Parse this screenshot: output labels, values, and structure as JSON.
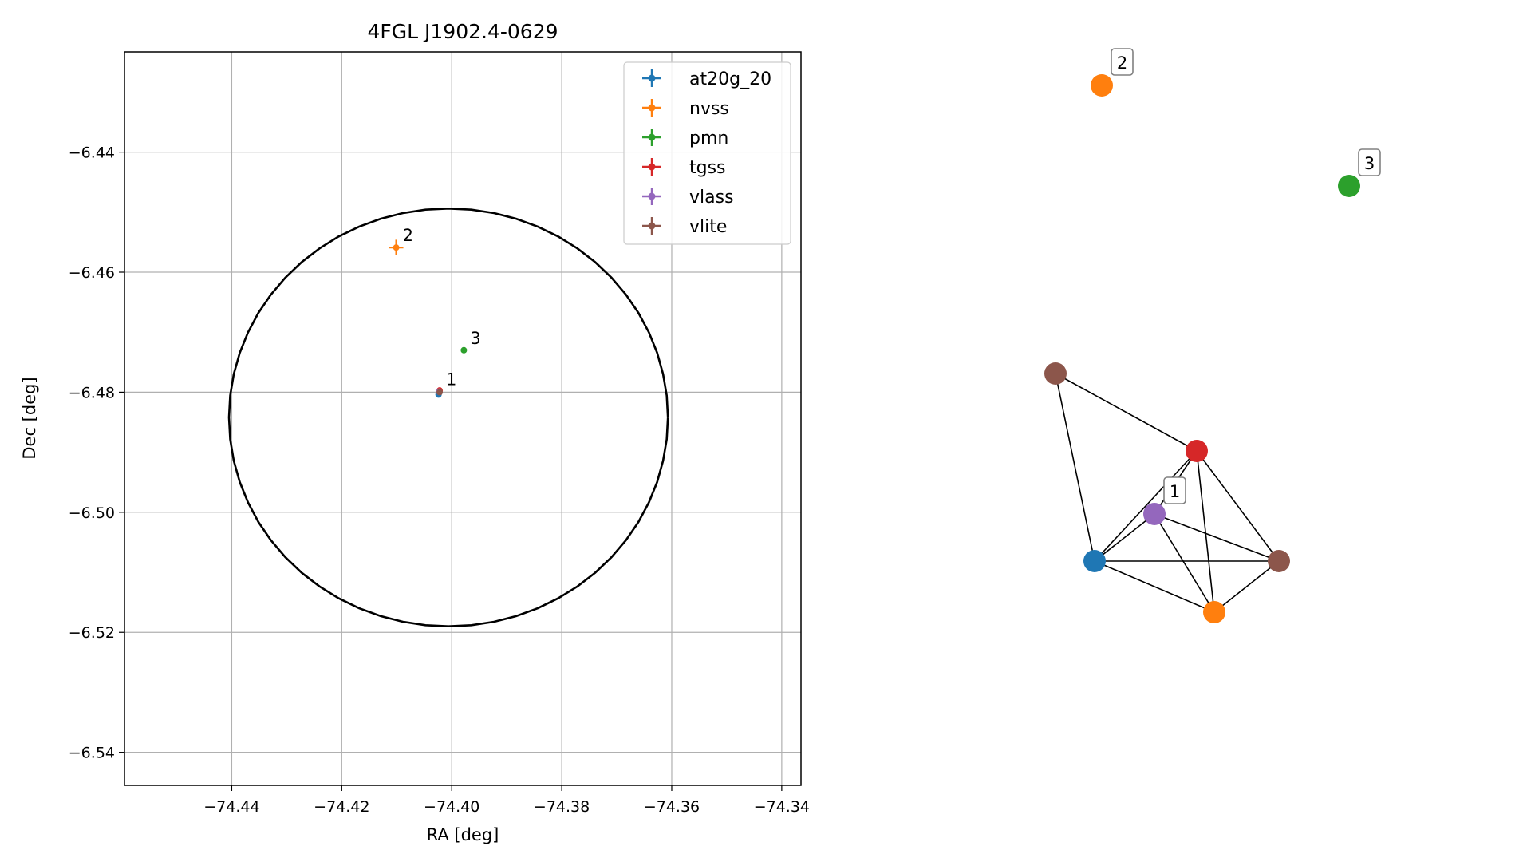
{
  "chart_data": [
    {
      "type": "scatter",
      "title": "4FGL J1902.4-0629",
      "xlabel": "RA [deg]",
      "ylabel": "Dec [deg]",
      "xlim": [
        -74.4595,
        -74.3365
      ],
      "ylim": [
        -6.5455,
        -6.4233
      ],
      "xticks": [
        -74.44,
        -74.42,
        -74.4,
        -74.38,
        -74.36,
        -74.34
      ],
      "xtick_labels": [
        "−74.44",
        "−74.42",
        "−74.40",
        "−74.38",
        "−74.36",
        "−74.34"
      ],
      "yticks": [
        -6.44,
        -6.46,
        -6.48,
        -6.5,
        -6.52,
        -6.54
      ],
      "ytick_labels": [
        "−6.44",
        "−6.46",
        "−6.48",
        "−6.50",
        "−6.52",
        "−6.54"
      ],
      "grid": true,
      "legend_position": "top-right",
      "ellipse": {
        "center_ra": -74.4006,
        "center_dec": -6.4842,
        "semi_major_ra": 0.0399,
        "semi_minor_dec": 0.0348,
        "color": "#000000"
      },
      "series": [
        {
          "name": "at20g_20",
          "color": "#1f77b4",
          "points": [
            {
              "ra": -74.4024,
              "dec": -6.4804,
              "err_ra": 0.0001,
              "err_dec": 0.0001
            }
          ]
        },
        {
          "name": "nvss",
          "color": "#ff7f0e",
          "points": [
            {
              "ra": -74.4101,
              "dec": -6.4559,
              "err_ra": 0.0013,
              "err_dec": 0.0013
            }
          ]
        },
        {
          "name": "pmn",
          "color": "#2ca02c",
          "points": [
            {
              "ra": -74.3978,
              "dec": -6.473,
              "err_ra": 0.0002,
              "err_dec": 0.0002
            }
          ]
        },
        {
          "name": "tgss",
          "color": "#d62728",
          "points": [
            {
              "ra": -74.4022,
              "dec": -6.4797,
              "err_ra": 0.0003,
              "err_dec": 0.0003
            }
          ]
        },
        {
          "name": "vlass",
          "color": "#9467bd",
          "points": [
            {
              "ra": -74.4023,
              "dec": -6.4799,
              "err_ra": 0.0001,
              "err_dec": 0.0001
            }
          ]
        },
        {
          "name": "vlite",
          "color": "#8c564b",
          "points": [
            {
              "ra": -74.4022,
              "dec": -6.48,
              "err_ra": 0.0003,
              "err_dec": 0.0003
            }
          ]
        }
      ],
      "annotations": [
        {
          "text": "1",
          "ra": -74.4022,
          "dec": -6.4799
        },
        {
          "text": "2",
          "ra": -74.4101,
          "dec": -6.4559
        },
        {
          "text": "3",
          "ra": -74.3978,
          "dec": -6.473
        }
      ]
    },
    {
      "type": "graph",
      "nodes": [
        {
          "id": "n1",
          "color": "#8c564b"
        },
        {
          "id": "n2",
          "color": "#d62728"
        },
        {
          "id": "n3",
          "color": "#9467bd"
        },
        {
          "id": "n4",
          "color": "#1f77b4"
        },
        {
          "id": "n5",
          "color": "#8c564b"
        },
        {
          "id": "n6",
          "color": "#ff7f0e"
        },
        {
          "id": "n7",
          "color": "#ff7f0e"
        },
        {
          "id": "n8",
          "color": "#2ca02c"
        }
      ],
      "edges": [
        [
          "n1",
          "n2"
        ],
        [
          "n1",
          "n4"
        ],
        [
          "n2",
          "n3"
        ],
        [
          "n2",
          "n4"
        ],
        [
          "n2",
          "n5"
        ],
        [
          "n2",
          "n6"
        ],
        [
          "n3",
          "n4"
        ],
        [
          "n3",
          "n5"
        ],
        [
          "n3",
          "n6"
        ],
        [
          "n4",
          "n5"
        ],
        [
          "n4",
          "n6"
        ],
        [
          "n5",
          "n6"
        ]
      ],
      "labels": [
        {
          "text": "1",
          "node": "n3"
        },
        {
          "text": "2",
          "node": "n7"
        },
        {
          "text": "3",
          "node": "n8"
        }
      ]
    }
  ]
}
